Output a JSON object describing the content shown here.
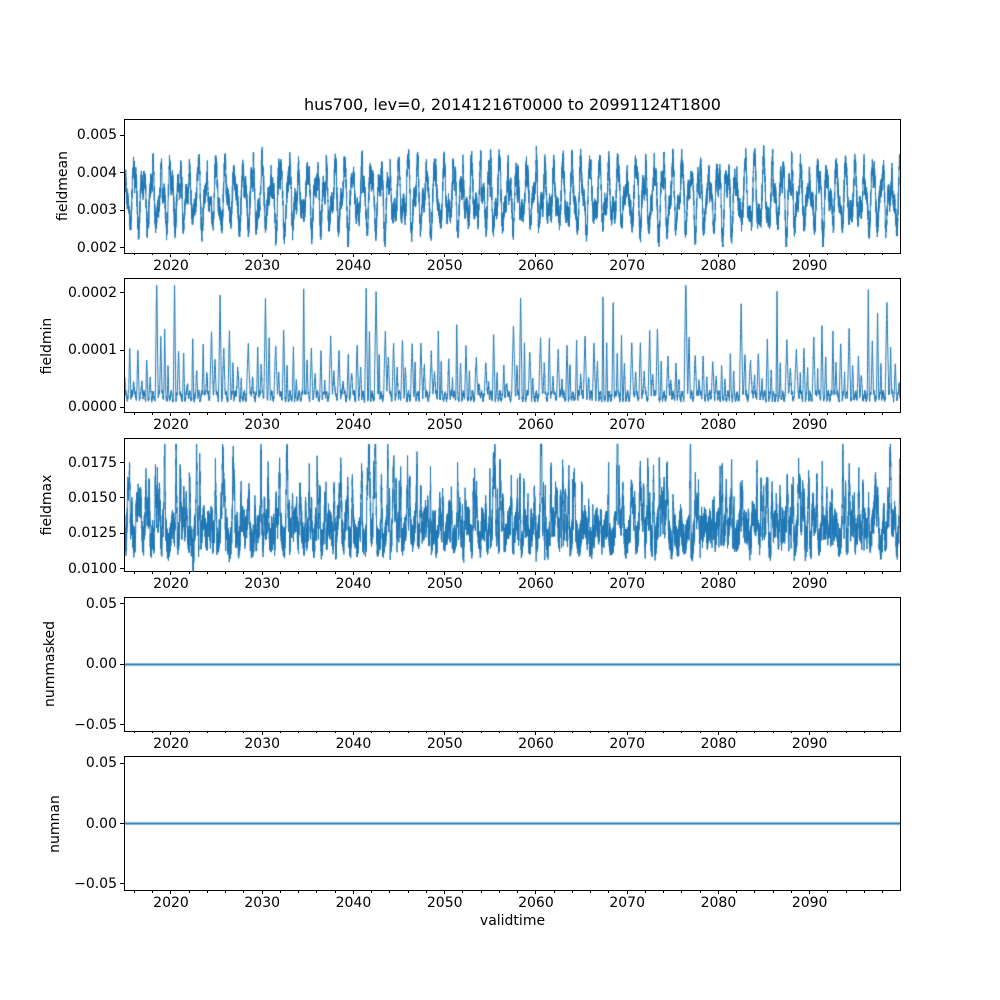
{
  "title": "hus700, lev=0, 20141216T0000 to 20991124T1800",
  "xlabel": "validtime",
  "line_color": "#1f77b4",
  "background_color": "#ffffff",
  "x_axis": {
    "xlim": [
      2014.96,
      2099.9
    ],
    "major_ticks": [
      2020,
      2030,
      2040,
      2050,
      2060,
      2070,
      2080,
      2090
    ],
    "major_tick_labels": [
      "2020",
      "2030",
      "2040",
      "2050",
      "2060",
      "2070",
      "2080",
      "2090"
    ],
    "minor_tick_step": 2,
    "minor_tick_range": [
      2016,
      2098
    ]
  },
  "chart_data": [
    {
      "type": "line",
      "name": "fieldmean",
      "ylabel": "fieldmean",
      "ylim": [
        0.00186,
        0.0054
      ],
      "ytick_values": [
        0.002,
        0.003,
        0.004,
        0.005
      ],
      "ytick_labels": [
        "0.002",
        "0.003",
        "0.004",
        "0.005"
      ],
      "signal": {
        "kind": "seasonal",
        "seed": 42,
        "mean": 0.00335,
        "annual_amp": 0.00065,
        "semiannual_amp": 0.00035,
        "noise": 0.00028,
        "phase": 1.8,
        "clamp": [
          0.00202,
          0.00524
        ]
      }
    },
    {
      "type": "line",
      "name": "fieldmin",
      "ylabel": "fieldmin",
      "ylim": [
        -8.8e-06,
        0.000224
      ],
      "ytick_values": [
        0.0,
        0.0001,
        0.0002
      ],
      "ytick_labels": [
        "0.0000",
        "0.0001",
        "0.0002"
      ],
      "signal": {
        "kind": "spiky",
        "seed": 7,
        "base": 8e-06,
        "base_osc": 1.4e-05,
        "base_noise": 8e-06,
        "annual_spike_min": 4.5e-05,
        "annual_spike_span": 8e-05,
        "tall_spike_prob": 0.18,
        "tall_spike_base": 0.00013,
        "tall_spike_span": 8.3e-05,
        "clamp": [
          2e-06,
          0.000213
        ]
      }
    },
    {
      "type": "line",
      "name": "fieldmax",
      "ylabel": "fieldmax",
      "ylim": [
        0.0098,
        0.0192
      ],
      "ytick_values": [
        0.01,
        0.0125,
        0.015,
        0.0175
      ],
      "ytick_labels": [
        "0.0100",
        "0.0125",
        "0.0150",
        "0.0175"
      ],
      "signal": {
        "kind": "seasonal_spiky",
        "seed": 99,
        "mean": 0.01255,
        "annual_amp_min": 0.0005,
        "annual_amp_span": 0.0005,
        "noise": 0.0011,
        "spike_h_min": 0.001,
        "spike_h_span": 0.0038,
        "dip": {
          "t": 2022.42,
          "depth": 0.003,
          "width": 0.13
        },
        "clamp": [
          0.00984,
          0.01885
        ]
      }
    },
    {
      "type": "line",
      "name": "nummasked",
      "ylabel": "nummasked",
      "ylim": [
        -0.055,
        0.055
      ],
      "ytick_values": [
        -0.05,
        0.0,
        0.05
      ],
      "ytick_labels": [
        "−0.05",
        "0.00",
        "0.05"
      ],
      "signal": {
        "kind": "constant",
        "value": 0.0
      }
    },
    {
      "type": "line",
      "name": "numnan",
      "ylabel": "numnan",
      "ylim": [
        -0.055,
        0.055
      ],
      "ytick_values": [
        -0.05,
        0.0,
        0.05
      ],
      "ytick_labels": [
        "−0.05",
        "0.00",
        "0.05"
      ],
      "signal": {
        "kind": "constant",
        "value": 0.0
      }
    }
  ]
}
